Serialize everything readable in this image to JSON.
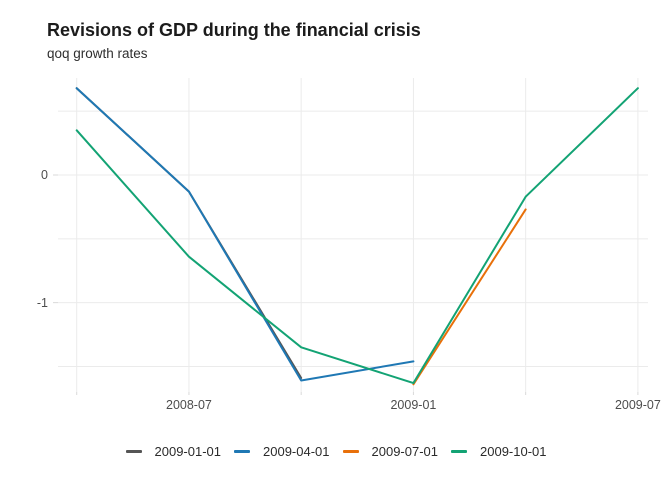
{
  "chart_data": {
    "type": "line",
    "title": "Revisions of GDP during the financial crisis",
    "subtitle": "qoq growth rates",
    "x_dates": [
      "2008-04",
      "2008-07",
      "2008-10",
      "2009-01",
      "2009-04",
      "2009-07"
    ],
    "x_months": [
      0,
      3,
      6,
      9,
      12,
      15
    ],
    "series": [
      {
        "name": "2009-01-01",
        "color": "#555555",
        "x_months": [
          0,
          3,
          6
        ],
        "values": [
          0.68,
          -0.13,
          -1.59
        ]
      },
      {
        "name": "2009-04-01",
        "color": "#1f78b4",
        "x_months": [
          0,
          3,
          6,
          9
        ],
        "values": [
          0.68,
          -0.13,
          -1.61,
          -1.46
        ]
      },
      {
        "name": "2009-07-01",
        "color": "#e8700a",
        "x_months": [
          9,
          12
        ],
        "values": [
          -1.64,
          -0.27
        ]
      },
      {
        "name": "2009-10-01",
        "color": "#13a374",
        "x_months": [
          0,
          3,
          6,
          9,
          12,
          15
        ],
        "values": [
          0.35,
          -0.64,
          -1.35,
          -1.63,
          -0.17,
          0.68
        ]
      }
    ],
    "x_axis": {
      "tick_labels": [
        "2008-07",
        "2009-01",
        "2009-07"
      ],
      "tick_months": [
        3,
        9,
        15
      ],
      "grid_months": [
        0,
        3,
        6,
        9,
        12,
        15
      ]
    },
    "y_axis": {
      "tick_labels": [
        "0",
        "-1"
      ],
      "tick_values": [
        0,
        -1
      ],
      "grid_values": [
        0.5,
        0,
        -0.5,
        -1,
        -1.5
      ]
    },
    "ylim": [
      -1.7,
      0.76
    ],
    "xlim_months": [
      -0.5,
      15.27
    ],
    "grid": true,
    "legend_position": "bottom",
    "legend_items": [
      "2009-01-01",
      "2009-04-01",
      "2009-07-01",
      "2009-10-01"
    ],
    "colors": {
      "grid": "#ebebeb",
      "tick": "#d9d9d9",
      "axis_text": "#4d4d4d",
      "title_text": "#1c1c1c",
      "subtitle_text": "#2e2e2e",
      "legend_text": "#2b2b2b"
    }
  }
}
